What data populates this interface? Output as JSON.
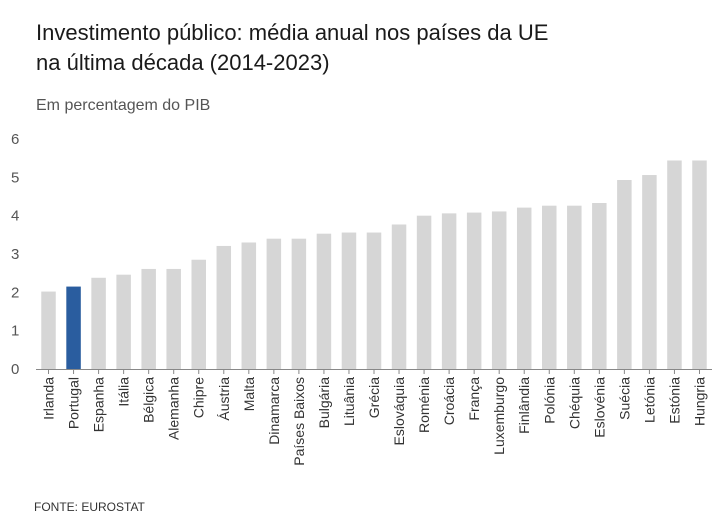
{
  "chart_data": {
    "type": "bar",
    "title_lines": [
      "Investimento público: média anual nos países da UE",
      "na última década (2014-2023)"
    ],
    "subtitle": "Em percentagem do PIB",
    "source": "FONTE: EUROSTAT",
    "ylim": [
      0,
      6
    ],
    "yticks": [
      0,
      1,
      2,
      3,
      4,
      5,
      6
    ],
    "categories": [
      "Irlanda",
      "Portugal",
      "Espanha",
      "Itália",
      "Bélgica",
      "Alemanha",
      "Chipre",
      "Áustria",
      "Malta",
      "Dinamarca",
      "Países Baixos",
      "Bulgária",
      "Lituânia",
      "Grécia",
      "Eslováquia",
      "Roménia",
      "Croácia",
      "França",
      "Luxemburgo",
      "Finlândia",
      "Polónia",
      "Chéquia",
      "Eslovénia",
      "Suécia",
      "Letónia",
      "Estónia",
      "Hungria"
    ],
    "values": [
      2.02,
      2.15,
      2.38,
      2.46,
      2.61,
      2.61,
      2.85,
      3.21,
      3.3,
      3.4,
      3.4,
      3.53,
      3.56,
      3.56,
      3.77,
      4.0,
      4.06,
      4.08,
      4.11,
      4.21,
      4.26,
      4.26,
      4.33,
      4.93,
      5.06,
      5.44,
      5.44
    ],
    "highlight": "Portugal",
    "colors": {
      "bar": "#d6d6d6",
      "highlight": "#2a5d9f",
      "axis": "#888888"
    }
  }
}
